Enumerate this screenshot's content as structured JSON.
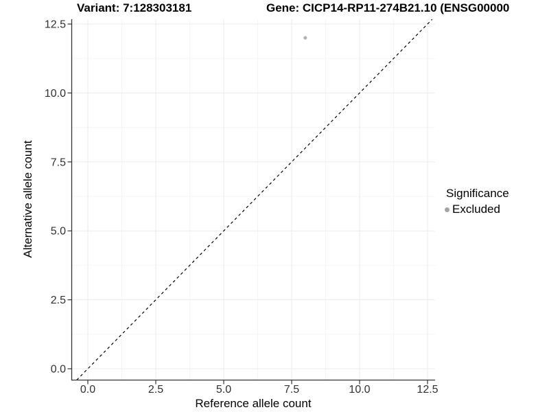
{
  "chart_data": {
    "type": "scatter",
    "titles": {
      "variant": "Variant: 7:128303181",
      "gene": "Gene: CICP14-RP11-274B21.10 (ENSG00000"
    },
    "xlabel": "Reference allele count",
    "ylabel": "Alternative allele count",
    "x_tick_labels": [
      "0.0",
      "2.5",
      "5.0",
      "7.5",
      "10.0",
      "12.5"
    ],
    "y_tick_labels": [
      "0.0",
      "2.5",
      "5.0",
      "7.5",
      "10.0",
      "12.5"
    ],
    "xlim": [
      -0.62,
      12.78
    ],
    "ylim": [
      -0.41,
      12.67
    ],
    "grid": {
      "major": true,
      "minor": true
    },
    "identity_line": {
      "slope": 1,
      "intercept": 0,
      "style": "dashed",
      "color": "#000000"
    },
    "series": [
      {
        "name": "Excluded",
        "color": "#b3b3b3",
        "points": [
          {
            "x": 8,
            "y": 12
          }
        ]
      }
    ],
    "legend": {
      "title": "Significance",
      "position": "right",
      "items": [
        {
          "label": "Excluded",
          "color": "#a3a3a3"
        }
      ]
    },
    "colors": {
      "background": "#ffffff",
      "axis_line": "#333333",
      "tick_text": "#303030",
      "grid_major": "#ebebeb",
      "grid_minor": "#f5f5f5"
    }
  }
}
